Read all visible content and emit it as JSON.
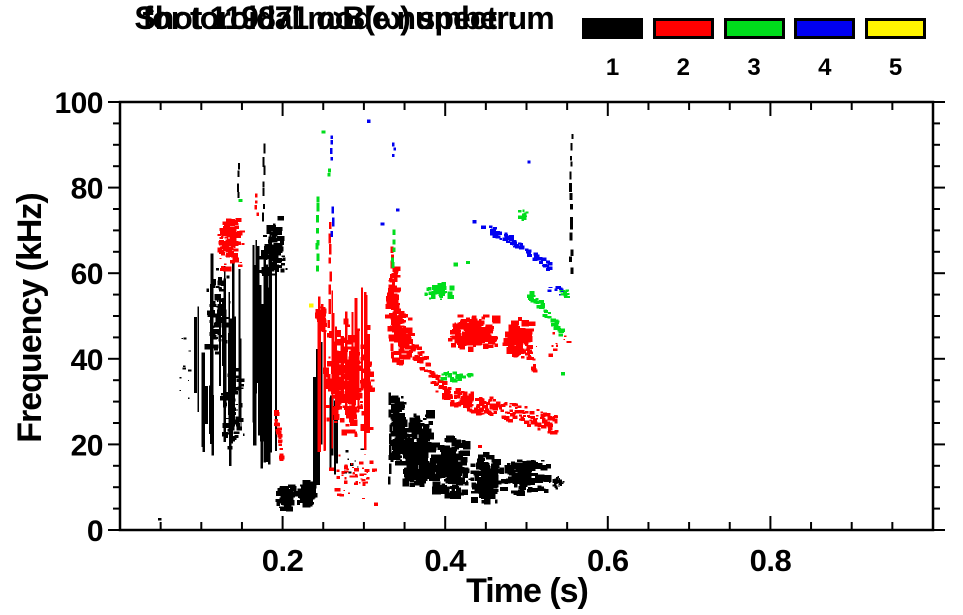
{
  "title": {
    "line1": "Shot 119871 ωB(ω) spectrum",
    "line2": "for toroidal mode number:"
  },
  "chart_data": {
    "type": "scatter",
    "title": "Shot 119871 ωB(ω) spectrum for toroidal mode number: 1 2 3 4 5",
    "xlabel": "Time (s)",
    "ylabel": "Frequency (kHz)",
    "xlim": [
      0,
      1.0
    ],
    "ylim": [
      0,
      100
    ],
    "x_major_ticks": [
      0.2,
      0.4,
      0.6,
      0.8
    ],
    "x_tick_labels": [
      "0.2",
      "0.4",
      "0.6",
      "0.8"
    ],
    "x_minor_step": 0.05,
    "y_major_ticks": [
      0,
      20,
      40,
      60,
      80,
      100
    ],
    "y_tick_labels": [
      "0",
      "20",
      "40",
      "60",
      "80",
      "100"
    ],
    "y_minor_step": 5,
    "grid": false,
    "legend_position": "top-right",
    "background": "#ffffff",
    "axis_color": "#000000",
    "modes": [
      {
        "mode": 1,
        "label": "1",
        "color": "#000000"
      },
      {
        "mode": 2,
        "label": "2",
        "color": "#ff0000"
      },
      {
        "mode": 3,
        "label": "3",
        "color": "#00dd1c"
      },
      {
        "mode": 4,
        "label": "4",
        "color": "#0000f0"
      },
      {
        "mode": 5,
        "label": "5",
        "color": "#fff500"
      }
    ],
    "clusters": [
      {
        "m": 1,
        "k": "dot",
        "t": 0.049,
        "f": 2.5,
        "s": 2.5
      },
      {
        "m": 1,
        "k": "cloud",
        "t0": 0.068,
        "t1": 0.092,
        "f0": 30,
        "f1": 46,
        "n": 10,
        "s": 2.5
      },
      {
        "m": 1,
        "k": "vstreaks",
        "t0": 0.092,
        "t1": 0.15,
        "f0": 20,
        "f1": 66,
        "n": 15
      },
      {
        "m": 1,
        "k": "vstreaks",
        "t0": 0.1,
        "t1": 0.15,
        "f0": 13,
        "f1": 42,
        "n": 9
      },
      {
        "m": 1,
        "k": "cloud",
        "t0": 0.105,
        "t1": 0.135,
        "f0": 40,
        "f1": 62,
        "n": 80,
        "s": 4
      },
      {
        "m": 1,
        "k": "cloud",
        "t0": 0.125,
        "t1": 0.155,
        "f0": 18,
        "f1": 38,
        "n": 60,
        "s": 4
      },
      {
        "m": 1,
        "k": "vstreaks",
        "t0": 0.148,
        "t1": 0.192,
        "f0": 12,
        "f1": 71,
        "n": 16
      },
      {
        "m": 1,
        "k": "cloud",
        "t0": 0.172,
        "t1": 0.207,
        "f0": 58,
        "f1": 73,
        "n": 110,
        "s": 4.5
      },
      {
        "m": 1,
        "k": "vline",
        "t": 0.146,
        "f0": 77,
        "f1": 86,
        "n": 4,
        "w": 2
      },
      {
        "m": 1,
        "k": "vline",
        "t": 0.177,
        "f0": 72,
        "f1": 91,
        "n": 7,
        "w": 2
      },
      {
        "m": 1,
        "k": "cloud",
        "t0": 0.193,
        "t1": 0.215,
        "f0": 4.5,
        "f1": 11,
        "n": 70,
        "s": 5
      },
      {
        "m": 1,
        "k": "cloud",
        "t0": 0.217,
        "t1": 0.24,
        "f0": 4.5,
        "f1": 11.5,
        "n": 80,
        "s": 5
      },
      {
        "m": 1,
        "k": "vstreaks",
        "t0": 0.238,
        "t1": 0.268,
        "f0": 8,
        "f1": 44,
        "n": 10
      },
      {
        "m": 1,
        "k": "cloud",
        "t0": 0.27,
        "t1": 0.3,
        "f0": 12,
        "f1": 20,
        "n": 8,
        "s": 2.5
      },
      {
        "m": 1,
        "k": "vline",
        "t": 0.332,
        "f0": 10,
        "f1": 33,
        "n": 7,
        "w": 2.5
      },
      {
        "m": 1,
        "k": "cloud",
        "t0": 0.333,
        "t1": 0.352,
        "f0": 15,
        "f1": 32,
        "n": 120,
        "s": 5
      },
      {
        "m": 1,
        "k": "cloud",
        "t0": 0.347,
        "t1": 0.386,
        "f0": 9,
        "f1": 28,
        "n": 170,
        "s": 6
      },
      {
        "m": 1,
        "k": "cloud",
        "t0": 0.386,
        "t1": 0.43,
        "f0": 7,
        "f1": 22,
        "n": 150,
        "s": 5.5
      },
      {
        "m": 1,
        "k": "cloud",
        "t0": 0.43,
        "t1": 0.47,
        "f0": 6,
        "f1": 18,
        "n": 120,
        "s": 5
      },
      {
        "m": 1,
        "k": "cloud",
        "t0": 0.47,
        "t1": 0.528,
        "f0": 8,
        "f1": 17,
        "n": 120,
        "s": 5
      },
      {
        "m": 1,
        "k": "cloud",
        "t0": 0.528,
        "t1": 0.547,
        "f0": 9.5,
        "f1": 13,
        "n": 25,
        "s": 3
      },
      {
        "m": 1,
        "k": "vline",
        "t": 0.5545,
        "f0": 59,
        "f1": 82,
        "n": 9,
        "w": 3
      },
      {
        "m": 1,
        "k": "vline",
        "t": 0.5555,
        "f0": 82,
        "f1": 93,
        "n": 5,
        "w": 2
      },
      {
        "m": 2,
        "k": "cloud",
        "t0": 0.117,
        "t1": 0.153,
        "f0": 60,
        "f1": 74,
        "n": 100,
        "s": 4.5
      },
      {
        "m": 2,
        "k": "vline",
        "t": 0.168,
        "f0": 73,
        "f1": 79,
        "n": 4,
        "w": 2.5
      },
      {
        "m": 2,
        "k": "path",
        "pts": [
          [
            0.192,
            27
          ],
          [
            0.196,
            22
          ],
          [
            0.199,
            16
          ]
        ],
        "th": 3.5,
        "n": 25
      },
      {
        "m": 2,
        "k": "cloud",
        "t0": 0.242,
        "t1": 0.252,
        "f0": 46,
        "f1": 53,
        "n": 40,
        "s": 4.5
      },
      {
        "m": 2,
        "k": "vstreaks",
        "t0": 0.245,
        "t1": 0.31,
        "f0": 18,
        "f1": 57,
        "n": 24
      },
      {
        "m": 2,
        "k": "cloud",
        "t0": 0.25,
        "t1": 0.312,
        "f0": 20,
        "f1": 50,
        "n": 220,
        "s": 5
      },
      {
        "m": 2,
        "k": "vline",
        "t": 0.258,
        "f0": 44,
        "f1": 72,
        "n": 10,
        "w": 2.5
      },
      {
        "m": 2,
        "k": "cloud",
        "t0": 0.258,
        "t1": 0.318,
        "f0": 7,
        "f1": 19,
        "n": 45,
        "s": 3
      },
      {
        "m": 2,
        "k": "vline",
        "t": 0.3355,
        "f0": 40,
        "f1": 67,
        "n": 13,
        "w": 3
      },
      {
        "m": 2,
        "k": "cloud",
        "t0": 0.33,
        "t1": 0.344,
        "f0": 42,
        "f1": 64,
        "n": 70,
        "s": 4.5
      },
      {
        "m": 2,
        "k": "cloud",
        "t0": 0.335,
        "t1": 0.362,
        "f0": 38,
        "f1": 52,
        "n": 80,
        "s": 5
      },
      {
        "m": 2,
        "k": "path",
        "pts": [
          [
            0.34,
            50
          ],
          [
            0.355,
            44
          ],
          [
            0.37,
            40
          ],
          [
            0.39,
            34.5
          ],
          [
            0.41,
            31
          ],
          [
            0.44,
            29.5
          ],
          [
            0.47,
            28
          ],
          [
            0.5,
            26.5
          ],
          [
            0.52,
            25.5
          ],
          [
            0.537,
            24.3
          ]
        ],
        "th": 4.5,
        "n": 280
      },
      {
        "m": 2,
        "k": "cloud",
        "t0": 0.403,
        "t1": 0.47,
        "f0": 42,
        "f1": 50.5,
        "n": 150,
        "s": 5
      },
      {
        "m": 2,
        "k": "cloud",
        "t0": 0.47,
        "t1": 0.507,
        "f0": 40,
        "f1": 50,
        "n": 90,
        "s": 5
      },
      {
        "m": 2,
        "k": "path",
        "pts": [
          [
            0.498,
            43
          ],
          [
            0.505,
            40.5
          ],
          [
            0.511,
            38
          ]
        ],
        "th": 3,
        "n": 18
      },
      {
        "m": 2,
        "k": "cloud",
        "t0": 0.51,
        "t1": 0.556,
        "f0": 40,
        "f1": 47,
        "n": 10,
        "s": 2.5
      },
      {
        "m": 2,
        "k": "dot",
        "t": 0.315,
        "f": 6,
        "s": 3
      },
      {
        "m": 2,
        "k": "dot",
        "t": 0.443,
        "f": 19.5,
        "s": 3
      },
      {
        "m": 3,
        "k": "dot",
        "t": 0.148,
        "f": 77,
        "s": 3
      },
      {
        "m": 3,
        "k": "vline",
        "t": 0.2435,
        "f0": 60,
        "f1": 78,
        "n": 8,
        "w": 3
      },
      {
        "m": 3,
        "k": "vline",
        "t": 0.258,
        "f0": 82,
        "f1": 85,
        "n": 2,
        "w": 3
      },
      {
        "m": 3,
        "k": "dot",
        "t": 0.2505,
        "f": 93,
        "s": 3
      },
      {
        "m": 3,
        "k": "vline",
        "t": 0.336,
        "f0": 61,
        "f1": 70,
        "n": 5,
        "w": 3
      },
      {
        "m": 3,
        "k": "cloud",
        "t0": 0.372,
        "t1": 0.412,
        "f0": 53.5,
        "f1": 58,
        "n": 35,
        "s": 4
      },
      {
        "m": 3,
        "k": "cloud",
        "t0": 0.392,
        "t1": 0.437,
        "f0": 34.5,
        "f1": 37.5,
        "n": 28,
        "s": 3.5
      },
      {
        "m": 3,
        "k": "dot",
        "t": 0.413,
        "f": 62,
        "s": 3.5
      },
      {
        "m": 3,
        "k": "dot",
        "t": 0.428,
        "f": 62.5,
        "s": 3
      },
      {
        "m": 3,
        "k": "cloud",
        "t0": 0.487,
        "t1": 0.504,
        "f0": 71.5,
        "f1": 75.5,
        "n": 14,
        "s": 3
      },
      {
        "m": 3,
        "k": "path",
        "pts": [
          [
            0.504,
            55.5
          ],
          [
            0.515,
            53
          ],
          [
            0.525,
            50.5
          ],
          [
            0.535,
            48.5
          ],
          [
            0.544,
            46
          ]
        ],
        "th": 2.5,
        "n": 45
      },
      {
        "m": 3,
        "k": "cloud",
        "t0": 0.54,
        "t1": 0.554,
        "f0": 54,
        "f1": 56.5,
        "n": 9,
        "s": 3
      },
      {
        "m": 3,
        "k": "dot",
        "t": 0.545,
        "f": 36.5,
        "s": 3
      },
      {
        "m": 4,
        "k": "vline",
        "t": 0.2595,
        "f0": 86,
        "f1": 92.5,
        "n": 4,
        "w": 2.5
      },
      {
        "m": 4,
        "k": "vline",
        "t": 0.261,
        "f0": 68,
        "f1": 75.5,
        "n": 3,
        "w": 2.5
      },
      {
        "m": 4,
        "k": "dot",
        "t": 0.306,
        "f": 95.5,
        "s": 3
      },
      {
        "m": 4,
        "k": "dot",
        "t": 0.323,
        "f": 71.5,
        "s": 3
      },
      {
        "m": 4,
        "k": "vline",
        "t": 0.3365,
        "f0": 87,
        "f1": 90.5,
        "n": 3,
        "w": 2.5
      },
      {
        "m": 4,
        "k": "dot",
        "t": 0.3415,
        "f": 74.8,
        "s": 2.5
      },
      {
        "m": 4,
        "k": "dot",
        "t": 0.436,
        "f": 72,
        "s": 3
      },
      {
        "m": 4,
        "k": "path",
        "pts": [
          [
            0.447,
            70.5
          ],
          [
            0.462,
            69.5
          ],
          [
            0.474,
            68.5
          ],
          [
            0.486,
            67
          ],
          [
            0.498,
            65.5
          ],
          [
            0.51,
            64
          ],
          [
            0.521,
            62.5
          ],
          [
            0.531,
            61
          ]
        ],
        "th": 2,
        "n": 60
      },
      {
        "m": 4,
        "k": "dot",
        "t": 0.503,
        "f": 86,
        "s": 2.5
      },
      {
        "m": 4,
        "k": "cloud",
        "t0": 0.52,
        "t1": 0.547,
        "f0": 54,
        "f1": 58.5,
        "n": 9,
        "s": 3
      },
      {
        "m": 5,
        "k": "dot",
        "t": 0.2355,
        "f": 52.5,
        "s": 3.5
      }
    ]
  }
}
